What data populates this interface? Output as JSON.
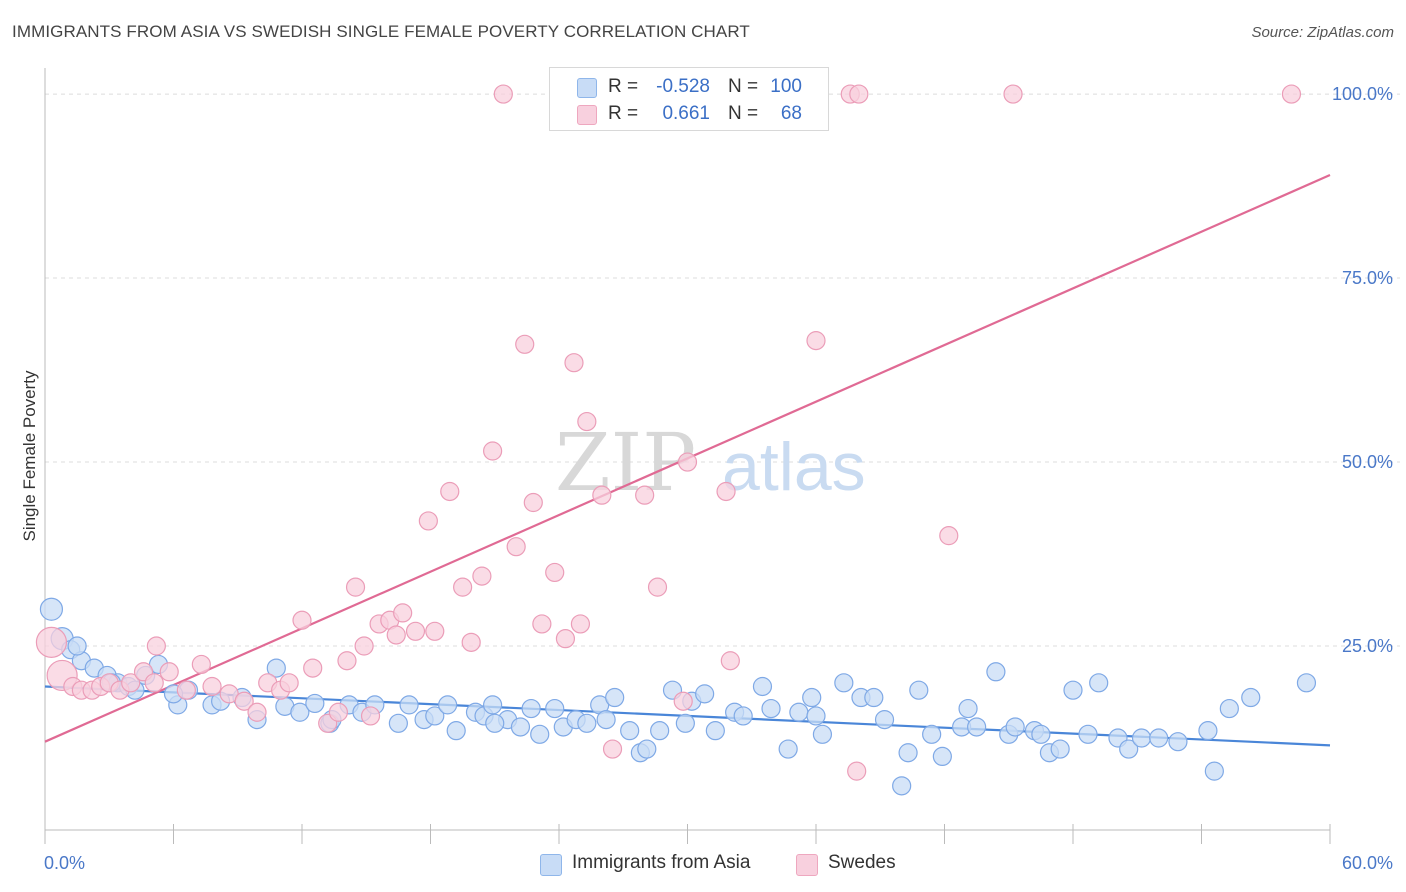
{
  "title": "IMMIGRANTS FROM ASIA VS SWEDISH SINGLE FEMALE POVERTY CORRELATION CHART",
  "source": "Source: ZipAtlas.com",
  "legend_top": {
    "rows": [
      {
        "r_label": "R =",
        "r_value": "-0.528",
        "n_label": "N =",
        "n_value": "100",
        "color": "#9ec3f2"
      },
      {
        "r_label": "R =",
        "r_value": "0.661",
        "n_label": "N =",
        "n_value": "68",
        "color": "#f4b6c9"
      }
    ]
  },
  "legend_bottom": [
    {
      "label": "Immigrants from Asia",
      "color": "#9ec3f2"
    },
    {
      "label": "Swedes",
      "color": "#f4b6c9"
    }
  ],
  "watermark": {
    "zip": "ZIP",
    "atlas": "atlas"
  },
  "colors": {
    "blue": "#4a86d8",
    "blue_fill": "#c8dcf6",
    "pink": "#e06a94",
    "pink_fill": "#f8d0de",
    "accent": "#4a78c8"
  },
  "chart_data": {
    "type": "scatter",
    "title": "IMMIGRANTS FROM ASIA VS SWEDISH SINGLE FEMALE POVERTY CORRELATION CHART",
    "xlabel": "",
    "ylabel": "Single Female Poverty",
    "xlim": [
      0,
      60
    ],
    "ylim": [
      0,
      103
    ],
    "x_tick_labels": [
      "0.0%",
      "60.0%"
    ],
    "y_ticks": [
      25,
      50,
      75,
      100
    ],
    "y_tick_labels": [
      "25.0%",
      "50.0%",
      "75.0%",
      "100.0%"
    ],
    "grid": true,
    "legend_position": "top-center",
    "series": [
      {
        "name": "Immigrants from Asia",
        "color": "#4a86d8",
        "trend": {
          "x": [
            0,
            60
          ],
          "y": [
            19.5,
            11.5
          ]
        },
        "points": [
          [
            0.3,
            30
          ],
          [
            0.8,
            26
          ],
          [
            1.2,
            24.5
          ],
          [
            1.7,
            23
          ],
          [
            2.3,
            22
          ],
          [
            2.9,
            21
          ],
          [
            3.4,
            20
          ],
          [
            3.9,
            19.5
          ],
          [
            4.2,
            19
          ],
          [
            4.7,
            21
          ],
          [
            5.3,
            22.5
          ],
          [
            6.2,
            17
          ],
          [
            6.7,
            19
          ],
          [
            7.8,
            17
          ],
          [
            8.2,
            17.5
          ],
          [
            9.2,
            18
          ],
          [
            9.9,
            15
          ],
          [
            10.8,
            22
          ],
          [
            11.2,
            16.8
          ],
          [
            11.9,
            16
          ],
          [
            12.6,
            17.2
          ],
          [
            13.3,
            14.5
          ],
          [
            14.2,
            17
          ],
          [
            14.8,
            16
          ],
          [
            15.4,
            17
          ],
          [
            16.5,
            14.5
          ],
          [
            17.0,
            17
          ],
          [
            17.7,
            15
          ],
          [
            18.2,
            15.5
          ],
          [
            18.8,
            17
          ],
          [
            19.2,
            13.5
          ],
          [
            20.1,
            16
          ],
          [
            20.5,
            15.5
          ],
          [
            20.9,
            17
          ],
          [
            21.6,
            15
          ],
          [
            22.2,
            14
          ],
          [
            22.7,
            16.5
          ],
          [
            23.1,
            13
          ],
          [
            23.8,
            16.5
          ],
          [
            24.2,
            14
          ],
          [
            24.8,
            15
          ],
          [
            25.3,
            14.5
          ],
          [
            25.9,
            17
          ],
          [
            26.2,
            15
          ],
          [
            26.6,
            18
          ],
          [
            27.3,
            13.5
          ],
          [
            27.8,
            10.5
          ],
          [
            28.7,
            13.5
          ],
          [
            29.3,
            19
          ],
          [
            29.9,
            14.5
          ],
          [
            30.2,
            17.5
          ],
          [
            30.8,
            18.5
          ],
          [
            31.3,
            13.5
          ],
          [
            32.2,
            16
          ],
          [
            32.6,
            15.5
          ],
          [
            33.5,
            19.5
          ],
          [
            33.9,
            16.5
          ],
          [
            34.7,
            11
          ],
          [
            35.2,
            16
          ],
          [
            35.8,
            18
          ],
          [
            36.3,
            13
          ],
          [
            37.3,
            20
          ],
          [
            38.1,
            18
          ],
          [
            38.7,
            18
          ],
          [
            39.2,
            15
          ],
          [
            40.0,
            6
          ],
          [
            40.3,
            10.5
          ],
          [
            40.8,
            19
          ],
          [
            41.4,
            13
          ],
          [
            41.9,
            10
          ],
          [
            42.8,
            14
          ],
          [
            43.1,
            16.5
          ],
          [
            43.5,
            14
          ],
          [
            44.4,
            21.5
          ],
          [
            45.0,
            13
          ],
          [
            45.3,
            14
          ],
          [
            46.2,
            13.5
          ],
          [
            46.9,
            10.5
          ],
          [
            47.4,
            11
          ],
          [
            48.0,
            19
          ],
          [
            48.7,
            13
          ],
          [
            49.2,
            20
          ],
          [
            50.1,
            12.5
          ],
          [
            50.6,
            11
          ],
          [
            51.2,
            12.5
          ],
          [
            52.9,
            12
          ],
          [
            54.3,
            13.5
          ],
          [
            54.6,
            8
          ],
          [
            55.3,
            16.5
          ],
          [
            56.3,
            18
          ],
          [
            58.9,
            20
          ],
          [
            1.5,
            25
          ],
          [
            3.1,
            20
          ],
          [
            6.0,
            18.5
          ],
          [
            13.4,
            15
          ],
          [
            21.0,
            14.5
          ],
          [
            28.1,
            11
          ],
          [
            36.0,
            15.5
          ],
          [
            46.5,
            13
          ],
          [
            52.0,
            12.5
          ]
        ]
      },
      {
        "name": "Swedes",
        "color": "#e06a94",
        "trend": {
          "x": [
            0,
            60
          ],
          "y": [
            12,
            89
          ]
        },
        "points": [
          [
            0.3,
            25.5
          ],
          [
            0.8,
            21
          ],
          [
            1.3,
            19.5
          ],
          [
            1.7,
            19
          ],
          [
            2.2,
            19
          ],
          [
            2.6,
            19.5
          ],
          [
            3.0,
            20
          ],
          [
            3.5,
            19
          ],
          [
            4.0,
            20
          ],
          [
            4.6,
            21.5
          ],
          [
            5.1,
            20
          ],
          [
            5.2,
            25
          ],
          [
            5.8,
            21.5
          ],
          [
            6.6,
            19
          ],
          [
            7.3,
            22.5
          ],
          [
            7.8,
            19.5
          ],
          [
            8.6,
            18.5
          ],
          [
            9.3,
            17.5
          ],
          [
            9.9,
            16
          ],
          [
            10.4,
            20
          ],
          [
            11.0,
            19
          ],
          [
            11.4,
            20
          ],
          [
            12.0,
            28.5
          ],
          [
            12.5,
            22
          ],
          [
            13.2,
            14.5
          ],
          [
            13.7,
            16
          ],
          [
            14.1,
            23
          ],
          [
            14.5,
            33
          ],
          [
            14.9,
            25
          ],
          [
            15.2,
            15.5
          ],
          [
            15.6,
            28
          ],
          [
            16.1,
            28.5
          ],
          [
            16.4,
            26.5
          ],
          [
            16.7,
            29.5
          ],
          [
            17.3,
            27
          ],
          [
            17.9,
            42
          ],
          [
            18.2,
            27
          ],
          [
            18.9,
            46
          ],
          [
            19.5,
            33
          ],
          [
            19.9,
            25.5
          ],
          [
            20.4,
            34.5
          ],
          [
            20.9,
            51.5
          ],
          [
            22.0,
            38.5
          ],
          [
            22.4,
            66
          ],
          [
            22.8,
            44.5
          ],
          [
            23.2,
            28
          ],
          [
            23.8,
            35
          ],
          [
            24.3,
            26
          ],
          [
            24.7,
            63.5
          ],
          [
            25.0,
            28
          ],
          [
            25.3,
            55.5
          ],
          [
            26.0,
            45.5
          ],
          [
            26.5,
            11
          ],
          [
            28.0,
            45.5
          ],
          [
            28.6,
            33
          ],
          [
            29.8,
            17.5
          ],
          [
            30.0,
            50
          ],
          [
            31.8,
            46
          ],
          [
            32.0,
            23
          ],
          [
            36.0,
            66.5
          ],
          [
            37.9,
            8
          ],
          [
            42.2,
            40
          ],
          [
            21.4,
            100
          ],
          [
            31.3,
            100
          ],
          [
            37.6,
            100
          ],
          [
            38.0,
            100
          ],
          [
            45.2,
            100
          ],
          [
            58.2,
            100
          ]
        ]
      }
    ]
  }
}
